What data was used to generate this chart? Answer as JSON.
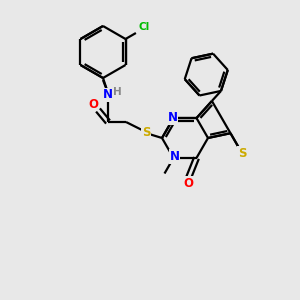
{
  "background_color": "#e8e8e8",
  "bond_color": "#000000",
  "atom_colors": {
    "Cl": "#00bb00",
    "N": "#0000ff",
    "O": "#ff0000",
    "S": "#ccaa00",
    "H": "#888888",
    "C": "#000000"
  },
  "figsize": [
    3.0,
    3.0
  ],
  "dpi": 100,
  "lw": 1.6
}
